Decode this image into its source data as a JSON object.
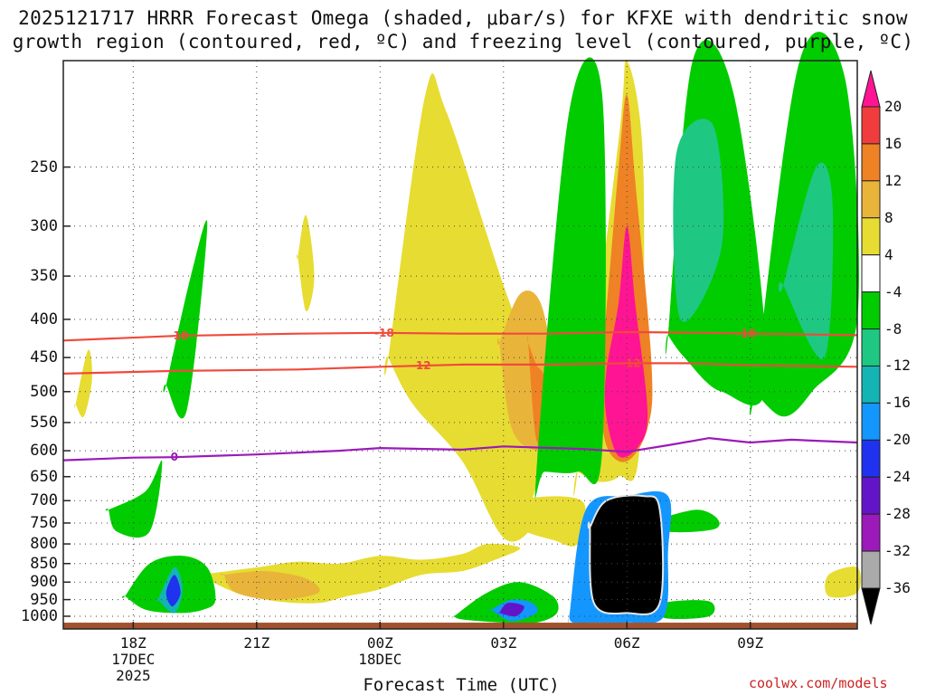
{
  "title_line1": "2025121717 HRRR Forecast Omega (shaded, μbar/s) for KFXE with dendritic snow",
  "title_line2": "growth region (contoured, red, ºC) and freezing level (contoured, purple, ºC)",
  "xlabel": "Forecast Time (UTC)",
  "credit": "coolwx.com/models",
  "chart_data": {
    "type": "heatmap",
    "x_unit": "forecast hours from 2025-12-17 17Z",
    "x_range": [
      16.3,
      35.6
    ],
    "y_range_hpa": [
      1040,
      180
    ],
    "y_ticks": [
      250,
      300,
      350,
      400,
      450,
      500,
      550,
      600,
      650,
      700,
      750,
      800,
      850,
      900,
      950,
      1000
    ],
    "x_ticks": [
      {
        "hour": 18,
        "lines": [
          "18Z",
          "17DEC",
          "2025"
        ]
      },
      {
        "hour": 21,
        "lines": [
          "21Z"
        ]
      },
      {
        "hour": 24,
        "lines": [
          "00Z",
          "18DEC"
        ]
      },
      {
        "hour": 27,
        "lines": [
          "03Z"
        ]
      },
      {
        "hour": 30,
        "lines": [
          "06Z"
        ]
      },
      {
        "hour": 33,
        "lines": [
          "09Z"
        ]
      }
    ],
    "colorbar": {
      "labels": [
        "20",
        "16",
        "12",
        "8",
        "4",
        "-4",
        "-8",
        "-12",
        "-16",
        "-20",
        "-24",
        "-28",
        "-32",
        "-36"
      ],
      "colors": [
        "#ff1493",
        "#f03c3c",
        "#ee8224",
        "#e9b43a",
        "#e7dc32",
        "#ffffff",
        "#00cc00",
        "#1ec882",
        "#14b4b4",
        "#1496ff",
        "#1e32f0",
        "#6414c8",
        "#9b1ab9",
        "#aaaaaa",
        "#000000"
      ]
    },
    "contours": [
      {
        "name": "-18C",
        "color": "#f04a3c",
        "label": "-18",
        "x": [
          16.3,
          19,
          22,
          24,
          26,
          28,
          30,
          32,
          33,
          35.6
        ],
        "p": [
          427,
          421,
          418,
          417,
          418,
          418,
          416,
          417,
          418,
          420
        ],
        "label_at": [
          19.1,
          24.1,
          32.9
        ]
      },
      {
        "name": "-12C",
        "color": "#f04a3c",
        "label": "-12",
        "x": [
          16.3,
          19,
          22,
          24,
          26,
          28,
          30,
          31.5,
          33,
          35.6
        ],
        "p": [
          473,
          469,
          467,
          463,
          460,
          460,
          458,
          458,
          461,
          463
        ],
        "label_at": [
          25,
          30.1
        ]
      },
      {
        "name": "0C",
        "color": "#9b1ab9",
        "label": "0",
        "x": [
          16.3,
          18,
          19,
          21,
          23,
          24,
          26,
          27,
          29,
          30,
          31,
          32,
          33,
          34,
          35.6
        ],
        "p": [
          618,
          613,
          612,
          607,
          600,
          595,
          598,
          592,
          597,
          602,
          590,
          577,
          585,
          580,
          585
        ],
        "label_at": [
          19
        ]
      }
    ],
    "omega_regions": [
      {
        "level": 4,
        "x": [
          24.2,
          25.1,
          25.6,
          27,
          27.8,
          28.2,
          28,
          27.7,
          27.7,
          27,
          26,
          24.8,
          24.2
        ],
        "p": [
          450,
          200,
          210,
          360,
          470,
          550,
          620,
          700,
          760,
          785,
          620,
          520,
          450
        ]
      },
      {
        "level": 4,
        "x": [
          27.4,
          28.9,
          28.8,
          28.2,
          27.4
        ],
        "p": [
          700,
          700,
          800,
          790,
          760
        ]
      },
      {
        "level": 4,
        "x": [
          28.8,
          29.8,
          30,
          30.4,
          30.3,
          29.8,
          29.3,
          28.8
        ],
        "p": [
          640,
          230,
          180,
          250,
          600,
          650,
          660,
          640
        ]
      },
      {
        "level": 8,
        "x": [
          26.9,
          27.4,
          27.9,
          28.2,
          28.1,
          27.8,
          27.2,
          26.9
        ],
        "p": [
          430,
          370,
          380,
          470,
          580,
          600,
          560,
          430
        ]
      },
      {
        "level": 12,
        "x": [
          27.6,
          27.8,
          28.0,
          28.1,
          27.8,
          27.6
        ],
        "p": [
          430,
          460,
          480,
          560,
          580,
          430
        ]
      },
      {
        "level": 12,
        "x": [
          29.4,
          29.8,
          30.0,
          30.2,
          30.6,
          30.5,
          30.0,
          29.5,
          29.3
        ],
        "p": [
          450,
          250,
          200,
          260,
          460,
          560,
          620,
          590,
          480
        ]
      },
      {
        "level": 20,
        "x": [
          29.5,
          29.8,
          30.0,
          30.2,
          30.5,
          30.3,
          29.8,
          29.5
        ],
        "p": [
          470,
          380,
          300,
          380,
          530,
          590,
          610,
          540
        ]
      },
      {
        "level": 4,
        "x": [
          19.6,
          21,
          22,
          23,
          24,
          25,
          26,
          26.6,
          27.4,
          26.8,
          26,
          25,
          24,
          23.2,
          22.5,
          21.5,
          20.5,
          19.6
        ],
        "p": [
          880,
          860,
          845,
          850,
          830,
          840,
          825,
          800,
          810,
          840,
          870,
          880,
          920,
          940,
          960,
          955,
          930,
          880
        ]
      },
      {
        "level": 8,
        "x": [
          20.2,
          21.2,
          22.2,
          22.5,
          21.5,
          20.5,
          20.2
        ],
        "p": [
          880,
          870,
          890,
          930,
          950,
          930,
          880
        ]
      },
      {
        "level": 4,
        "x": [
          34.9,
          35.6,
          35.6,
          34.9
        ],
        "p": [
          880,
          860,
          930,
          940
        ]
      },
      {
        "level": 4,
        "x": [
          22,
          22.2,
          22.4,
          22.2,
          22
        ],
        "p": [
          330,
          290,
          350,
          390,
          330
        ]
      },
      {
        "level": 4,
        "x": [
          16.6,
          16.9,
          17.0,
          16.8,
          16.6
        ],
        "p": [
          520,
          440,
          480,
          540,
          520
        ]
      },
      {
        "level": -4,
        "x": [
          17.4,
          18.3,
          18.7,
          18.4,
          17.6,
          17.4
        ],
        "p": [
          720,
          680,
          620,
          770,
          770,
          720
        ]
      },
      {
        "level": -4,
        "x": [
          18.8,
          19.4,
          19.8,
          19.3,
          18.8
        ],
        "p": [
          490,
          350,
          300,
          530,
          490
        ]
      },
      {
        "level": -4,
        "x": [
          27.8,
          28.6,
          29.4,
          29.4,
          28.8,
          28.0
        ],
        "p": [
          640,
          210,
          200,
          600,
          640,
          640
        ]
      },
      {
        "level": -4,
        "x": [
          31.0,
          31.6,
          32.6,
          33.4,
          32.3,
          31.4,
          31.0
        ],
        "p": [
          420,
          180,
          200,
          480,
          500,
          450,
          420
        ]
      },
      {
        "level": -4,
        "x": [
          33.1,
          34.2,
          35.3,
          35.6,
          34.5,
          33.8,
          33.1
        ],
        "p": [
          500,
          180,
          190,
          400,
          500,
          540,
          500
        ]
      },
      {
        "level": -4,
        "x": [
          30.8,
          31.7,
          32.2,
          32.1,
          31.0,
          30.8
        ],
        "p": [
          740,
          720,
          740,
          765,
          770,
          740
        ]
      },
      {
        "level": -4,
        "x": [
          30.9,
          32.0,
          32.0,
          30.9
        ],
        "p": [
          960,
          955,
          1000,
          1005
        ]
      },
      {
        "level": -4,
        "x": [
          17.8,
          18.4,
          19.2,
          19.8,
          20.0,
          19.7,
          19.1,
          18.3,
          17.8
        ],
        "p": [
          940,
          850,
          830,
          860,
          950,
          980,
          990,
          980,
          940
        ]
      },
      {
        "level": -4,
        "x": [
          25.8,
          26.6,
          27.4,
          28.2,
          28.3,
          27.8,
          27.0,
          26.0,
          25.8
        ],
        "p": [
          1000,
          930,
          900,
          940,
          990,
          1020,
          1020,
          1010,
          1000
        ]
      },
      {
        "level": -8,
        "x": [
          31.2,
          32.1,
          32.3,
          31.3
        ],
        "p": [
          240,
          220,
          320,
          400
        ]
      },
      {
        "level": -8,
        "x": [
          33.8,
          34.6,
          35.0,
          34.8,
          33.8
        ],
        "p": [
          360,
          250,
          280,
          450,
          360
        ]
      },
      {
        "level": -12,
        "x": [
          18.6,
          19.0,
          19.2,
          19.0,
          18.6
        ],
        "p": [
          950,
          860,
          920,
          990,
          950
        ]
      },
      {
        "level": -16,
        "x": [
          26.7,
          27.2,
          27.7,
          27.8,
          27.2,
          26.7
        ],
        "p": [
          980,
          950,
          960,
          990,
          1015,
          980
        ]
      },
      {
        "level": -20,
        "x": [
          18.8,
          19.0,
          19.15,
          18.95
        ],
        "p": [
          930,
          880,
          930,
          970
        ]
      },
      {
        "level": -24,
        "x": [
          26.9,
          27.1,
          27.5,
          27.3,
          26.9
        ],
        "p": [
          990,
          960,
          970,
          1000,
          990
        ]
      },
      {
        "level": -16,
        "x": [
          28.6,
          29.0,
          30.0,
          31.0,
          31.0,
          30.9,
          30.0,
          29.3,
          28.7,
          28.6
        ],
        "p": [
          1000,
          720,
          690,
          690,
          820,
          1000,
          1020,
          1020,
          1020,
          1000
        ]
      },
      {
        "level": -36,
        "x": [
          29.1,
          29.5,
          30.4,
          30.8,
          30.8,
          30.0,
          29.2,
          29.1
        ],
        "p": [
          760,
          700,
          690,
          720,
          960,
          990,
          960,
          760
        ]
      }
    ],
    "ground_hpa": 1020
  }
}
